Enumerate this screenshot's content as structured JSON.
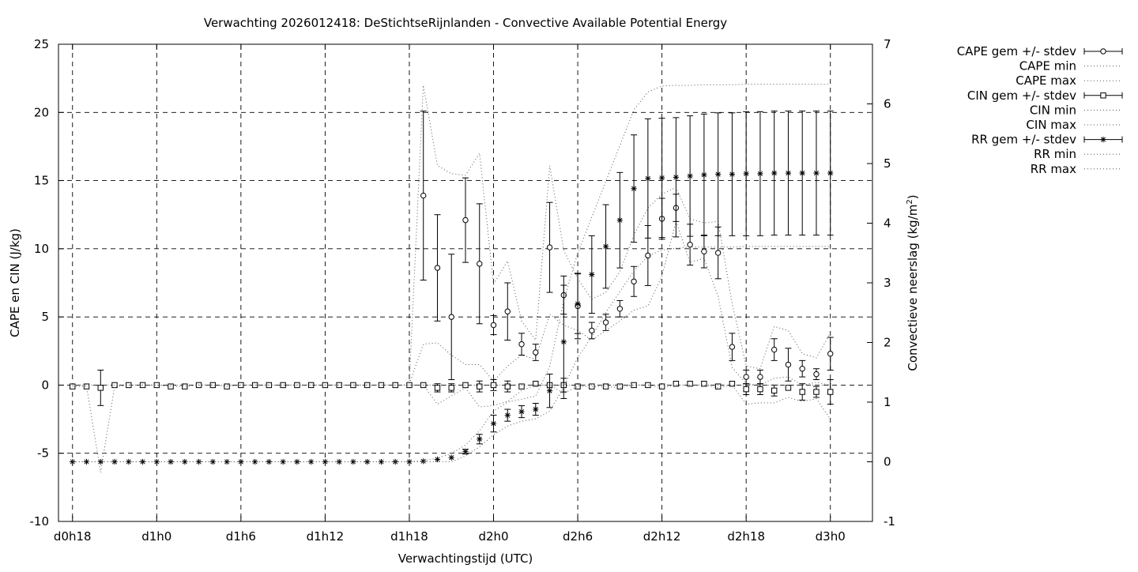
{
  "chart_data": {
    "type": "line",
    "title": "Verwachting 2026012418: DeStichtseRijnlanden - Convective Available Potential Energy",
    "xlabel": "Verwachtingstijd (UTC)",
    "ylabel": "CAPE en CIN (J/kg)",
    "y2label_main": "Convectieve neerslag (kg/m",
    "y2label_sup": "2",
    "y2label_end": ")",
    "x_unit": "hours since d0h0",
    "xlim": [
      17,
      75
    ],
    "ylim": [
      -10,
      25
    ],
    "y2lim": [
      -1,
      7
    ],
    "grid": true,
    "legend_position": "outside top-right",
    "x_ticks": [
      {
        "x": 18,
        "label": "d0h18"
      },
      {
        "x": 24,
        "label": "d1h0"
      },
      {
        "x": 30,
        "label": "d1h6"
      },
      {
        "x": 36,
        "label": "d1h12"
      },
      {
        "x": 42,
        "label": "d1h18"
      },
      {
        "x": 48,
        "label": "d2h0"
      },
      {
        "x": 54,
        "label": "d2h6"
      },
      {
        "x": 60,
        "label": "d2h12"
      },
      {
        "x": 66,
        "label": "d2h18"
      },
      {
        "x": 72,
        "label": "d3h0"
      }
    ],
    "y_ticks": [
      "-10",
      "-5",
      "0",
      "5",
      "10",
      "15",
      "20",
      "25"
    ],
    "y2_ticks": [
      "-1",
      "0",
      "1",
      "2",
      "3",
      "4",
      "5",
      "6",
      "7"
    ],
    "legend": [
      "CAPE gem +/- stdev",
      "CAPE min",
      "CAPE max",
      "CIN gem +/- stdev",
      "CIN min",
      "CIN max",
      "RR gem +/- stdev",
      "RR min",
      "RR max"
    ],
    "x": [
      18,
      19,
      20,
      21,
      22,
      23,
      24,
      25,
      26,
      27,
      28,
      29,
      30,
      31,
      32,
      33,
      34,
      35,
      36,
      37,
      38,
      39,
      40,
      41,
      42,
      43,
      44,
      45,
      46,
      47,
      48,
      49,
      50,
      51,
      52,
      53,
      54,
      55,
      56,
      57,
      58,
      59,
      60,
      61,
      62,
      63,
      64,
      65,
      66,
      67,
      68,
      69,
      70,
      71,
      72
    ],
    "series": [
      {
        "name": "CAPE gem +/- stdev",
        "axis": "y",
        "marker": "circle",
        "x": [
          43,
          44,
          45,
          46,
          47,
          48,
          49,
          50,
          51,
          52,
          53,
          54,
          55,
          56,
          57,
          58,
          59,
          60,
          61,
          62,
          63,
          64,
          65,
          66,
          67,
          68,
          69,
          70,
          71,
          72
        ],
        "mean": [
          13.9,
          8.6,
          5.0,
          12.1,
          8.9,
          4.4,
          5.4,
          3.0,
          2.4,
          10.1,
          6.6,
          5.8,
          4.0,
          4.6,
          5.6,
          7.6,
          9.5,
          12.2,
          13.0,
          10.3,
          9.8,
          9.7,
          2.8,
          0.6,
          0.6,
          2.6,
          1.5,
          1.2,
          0.8,
          2.3
        ],
        "stdev": [
          6.2,
          3.9,
          4.6,
          3.1,
          4.4,
          0.7,
          2.1,
          0.8,
          0.6,
          3.3,
          1.4,
          2.4,
          0.6,
          0.6,
          0.6,
          1.1,
          2.2,
          1.5,
          1.0,
          1.5,
          1.2,
          1.9,
          1.0,
          0.5,
          0.5,
          0.8,
          1.2,
          0.6,
          0.4,
          1.2
        ]
      },
      {
        "name": "CAPE min",
        "axis": "y",
        "style": "dotted",
        "x": [
          42,
          43,
          44,
          45,
          46,
          47,
          48,
          49,
          50,
          51,
          52,
          53,
          54,
          55,
          56,
          57,
          58,
          59,
          60,
          61,
          62,
          63,
          64,
          65,
          66,
          67,
          68,
          69,
          70,
          71,
          72
        ],
        "values": [
          0.1,
          3.0,
          3.1,
          2.2,
          1.5,
          1.5,
          0.3,
          1.4,
          2.2,
          1.9,
          5.2,
          4.4,
          4.0,
          3.3,
          4.0,
          4.7,
          5.5,
          5.8,
          8.0,
          12.0,
          9.0,
          9.3,
          6.5,
          1.3,
          0.1,
          0.0,
          0.5,
          0.6,
          0.0,
          0.2,
          0.0
        ]
      },
      {
        "name": "CAPE max",
        "axis": "y",
        "style": "dotted",
        "x": [
          42,
          43,
          44,
          45,
          46,
          47,
          48,
          49,
          50,
          51,
          52,
          53,
          54,
          55,
          56,
          57,
          58,
          59,
          60,
          61,
          62,
          63,
          64,
          65,
          66,
          67,
          68,
          69,
          70,
          71,
          72
        ],
        "values": [
          0.3,
          22.0,
          16.1,
          15.5,
          15.4,
          17.0,
          7.4,
          9.1,
          4.7,
          3.3,
          16.1,
          9.9,
          7.8,
          6.3,
          6.8,
          8.3,
          11.0,
          13.0,
          14.0,
          14.5,
          12.2,
          11.9,
          12.0,
          6.0,
          1.4,
          1.2,
          4.3,
          4.0,
          2.3,
          2.0,
          3.8
        ]
      },
      {
        "name": "CIN gem +/- stdev",
        "axis": "y",
        "marker": "square",
        "x": [
          18,
          19,
          20,
          21,
          22,
          23,
          24,
          25,
          26,
          27,
          28,
          29,
          30,
          31,
          32,
          33,
          34,
          35,
          36,
          37,
          38,
          39,
          40,
          41,
          42,
          43,
          44,
          45,
          46,
          47,
          48,
          49,
          50,
          51,
          52,
          53,
          54,
          55,
          56,
          57,
          58,
          59,
          60,
          61,
          62,
          63,
          64,
          65,
          66,
          67,
          68,
          69,
          70,
          71,
          72
        ],
        "mean": [
          -0.1,
          -0.1,
          -0.2,
          0.0,
          0.0,
          0.0,
          0.0,
          -0.1,
          -0.1,
          0.0,
          0.0,
          -0.1,
          0.0,
          0.0,
          0.0,
          0.0,
          0.0,
          0.0,
          0.0,
          0.0,
          0.0,
          0.0,
          0.0,
          0.0,
          0.0,
          0.0,
          -0.2,
          -0.2,
          0.0,
          -0.1,
          0.0,
          -0.1,
          -0.1,
          0.1,
          0.0,
          0.0,
          -0.1,
          -0.1,
          -0.1,
          -0.1,
          0.0,
          0.0,
          -0.1,
          0.1,
          0.1,
          0.1,
          -0.1,
          0.1,
          -0.3,
          -0.3,
          -0.4,
          -0.2,
          -0.5,
          -0.5,
          -0.5
        ],
        "stdev": [
          0,
          0,
          1.3,
          0,
          0,
          0,
          0,
          0,
          0,
          0,
          0,
          0,
          0,
          0,
          0,
          0,
          0,
          0,
          0,
          0,
          0,
          0,
          0,
          0,
          0,
          0,
          0.3,
          0.3,
          0,
          0.4,
          0.4,
          0.4,
          0,
          0,
          0,
          0.5,
          0,
          0,
          0,
          0,
          0,
          0,
          0,
          0,
          0,
          0,
          0,
          0,
          0.4,
          0.4,
          0.4,
          0,
          0.6,
          0.4,
          0.9
        ]
      },
      {
        "name": "CIN min",
        "axis": "y",
        "style": "dotted",
        "x": [
          18,
          19,
          20,
          21,
          22,
          23,
          24,
          25,
          26,
          27,
          28,
          29,
          30,
          31,
          32,
          33,
          34,
          35,
          36,
          37,
          38,
          39,
          40,
          41,
          42,
          43,
          44,
          45,
          46,
          47,
          48,
          49,
          50,
          51,
          52,
          53,
          54,
          55,
          56,
          57,
          58,
          59,
          60,
          61,
          62,
          63,
          64,
          65,
          66,
          67,
          68,
          69,
          70,
          71,
          72
        ],
        "values": [
          -0.1,
          -0.1,
          -6.4,
          -0.1,
          0.0,
          0.0,
          0.0,
          -0.1,
          -0.1,
          0.0,
          0.0,
          -0.1,
          0.0,
          0.0,
          0.0,
          0.0,
          0.0,
          0.0,
          0.0,
          0.0,
          0.0,
          0.0,
          0.0,
          0.0,
          0.0,
          0.0,
          -1.4,
          -0.8,
          -0.2,
          -1.6,
          -1.5,
          -1.2,
          -0.4,
          0.0,
          0.0,
          -0.6,
          -0.1,
          -0.1,
          -0.1,
          -0.2,
          0.0,
          0.0,
          -0.2,
          0.0,
          0.0,
          0.0,
          -0.2,
          0.0,
          -1.4,
          -1.3,
          -1.3,
          -0.9,
          -1.2,
          -1.0,
          -2.5
        ]
      },
      {
        "name": "CIN max",
        "axis": "y",
        "style": "dotted",
        "x": [
          18,
          19,
          20,
          21,
          22,
          23,
          24,
          25,
          26,
          27,
          28,
          29,
          30,
          31,
          32,
          33,
          34,
          35,
          36,
          37,
          38,
          39,
          40,
          41,
          42,
          43,
          44,
          45,
          46,
          47,
          48,
          49,
          50,
          51,
          52,
          53,
          54,
          55,
          56,
          57,
          58,
          59,
          60,
          61,
          62,
          63,
          64,
          65,
          66,
          67,
          68,
          69,
          70,
          71,
          72
        ],
        "values": [
          0.0,
          0.0,
          0.0,
          0.0,
          0.0,
          0.0,
          0.0,
          0.0,
          0.0,
          0.0,
          0.0,
          0.0,
          0.0,
          0.0,
          0.0,
          0.0,
          0.0,
          0.0,
          0.0,
          0.0,
          0.0,
          0.0,
          0.0,
          0.0,
          0.0,
          0.0,
          0.0,
          0.0,
          0.0,
          0.0,
          0.0,
          0.0,
          0.0,
          0.0,
          0.0,
          0.0,
          0.0,
          0.0,
          0.0,
          0.0,
          0.0,
          0.0,
          0.0,
          0.0,
          0.0,
          0.0,
          0.0,
          0.0,
          0.0,
          0.0,
          0.0,
          0.0,
          0.0,
          0.0,
          0.0
        ]
      },
      {
        "name": "RR gem +/- stdev",
        "axis": "y2",
        "marker": "star",
        "x": [
          18,
          19,
          20,
          21,
          22,
          23,
          24,
          25,
          26,
          27,
          28,
          29,
          30,
          31,
          32,
          33,
          34,
          35,
          36,
          37,
          38,
          39,
          40,
          41,
          42,
          43,
          44,
          45,
          46,
          47,
          48,
          49,
          50,
          51,
          52,
          53,
          54,
          55,
          56,
          57,
          58,
          59,
          60,
          61,
          62,
          63,
          64,
          65,
          66,
          67,
          68,
          69,
          70,
          71,
          72
        ],
        "mean": [
          0,
          0,
          0,
          0,
          0,
          0,
          0,
          0,
          0,
          0,
          0,
          0,
          0,
          0,
          0,
          0,
          0,
          0,
          0,
          0,
          0,
          0,
          0,
          0,
          0,
          0.01,
          0.04,
          0.07,
          0.17,
          0.38,
          0.64,
          0.78,
          0.84,
          0.88,
          1.19,
          2.01,
          2.65,
          3.14,
          3.61,
          4.05,
          4.58,
          4.75,
          4.76,
          4.77,
          4.79,
          4.81,
          4.82,
          4.82,
          4.83,
          4.83,
          4.84,
          4.84,
          4.84,
          4.84,
          4.84
        ],
        "stdev": [
          0,
          0,
          0,
          0,
          0,
          0,
          0,
          0,
          0,
          0,
          0,
          0,
          0,
          0,
          0,
          0,
          0,
          0,
          0,
          0,
          0,
          0,
          0,
          0,
          0,
          0,
          0,
          0,
          0.04,
          0.08,
          0.14,
          0.1,
          0.1,
          0.1,
          0.28,
          0.95,
          0.5,
          0.65,
          0.7,
          0.8,
          0.9,
          1.0,
          1.0,
          1.0,
          1.01,
          1.02,
          1.03,
          1.03,
          1.04,
          1.04,
          1.04,
          1.04,
          1.04,
          1.04,
          1.04
        ]
      },
      {
        "name": "RR min",
        "axis": "y2",
        "style": "dotted",
        "x": [
          18,
          19,
          20,
          21,
          22,
          23,
          24,
          25,
          26,
          27,
          28,
          29,
          30,
          31,
          32,
          33,
          34,
          35,
          36,
          37,
          38,
          39,
          40,
          41,
          42,
          43,
          44,
          45,
          46,
          47,
          48,
          49,
          50,
          51,
          52,
          53,
          54,
          55,
          56,
          57,
          58,
          59,
          60,
          61,
          62,
          63,
          64,
          65,
          66,
          67,
          68,
          69,
          70,
          71,
          72
        ],
        "values": [
          0,
          0,
          0,
          0,
          0,
          0,
          0,
          0,
          0,
          0,
          0,
          0,
          0,
          0,
          0,
          0,
          0,
          0,
          0,
          0,
          0,
          0,
          0,
          0,
          0,
          0,
          0,
          0,
          0.1,
          0.25,
          0.45,
          0.6,
          0.68,
          0.72,
          0.85,
          1.25,
          1.75,
          2.1,
          2.5,
          2.85,
          3.2,
          3.45,
          3.55,
          3.58,
          3.6,
          3.6,
          3.6,
          3.6,
          3.61,
          3.61,
          3.61,
          3.61,
          3.61,
          3.61,
          3.61
        ]
      },
      {
        "name": "RR max",
        "axis": "y2",
        "style": "dotted",
        "x": [
          18,
          19,
          20,
          21,
          22,
          23,
          24,
          25,
          26,
          27,
          28,
          29,
          30,
          31,
          32,
          33,
          34,
          35,
          36,
          37,
          38,
          39,
          40,
          41,
          42,
          43,
          44,
          45,
          46,
          47,
          48,
          49,
          50,
          51,
          52,
          53,
          54,
          55,
          56,
          57,
          58,
          59,
          60,
          61,
          62,
          63,
          64,
          65,
          66,
          67,
          68,
          69,
          70,
          71,
          72
        ],
        "values": [
          0,
          0,
          0,
          0,
          0,
          0,
          0,
          0,
          0,
          0,
          0,
          0,
          0,
          0,
          0,
          0,
          0,
          0,
          0,
          0,
          0,
          0,
          0,
          0,
          0,
          0.02,
          0.06,
          0.14,
          0.28,
          0.52,
          0.85,
          1.0,
          1.05,
          1.1,
          1.6,
          2.7,
          3.5,
          4.1,
          4.7,
          5.3,
          5.9,
          6.2,
          6.3,
          6.31,
          6.31,
          6.32,
          6.32,
          6.32,
          6.33,
          6.33,
          6.33,
          6.33,
          6.33,
          6.33,
          6.33
        ]
      }
    ]
  }
}
